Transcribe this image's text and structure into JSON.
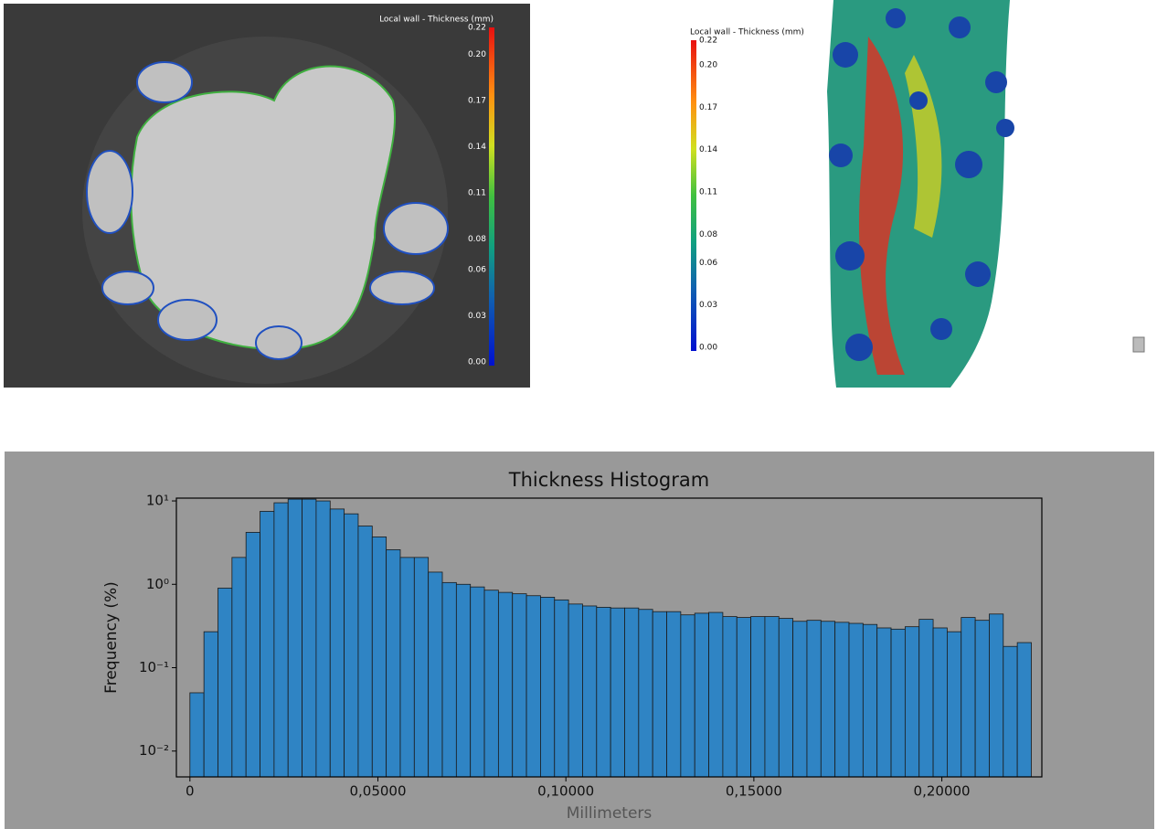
{
  "chart_data": [
    {
      "type": "colorbar",
      "title": "Local wall - Thickness (mm)",
      "ylim": [
        0,
        0.22
      ],
      "yticks": [
        {
          "value": 0,
          "label": "0.00"
        },
        0.03,
        0.06,
        0.08,
        0.11,
        0.14,
        0.17,
        {
          "value": 0.2,
          "label": "0.20"
        },
        0.22
      ]
    },
    {
      "type": "colorbar",
      "title": "Local wall - Thickness (mm)",
      "ylim": [
        0,
        0.22
      ],
      "yticks": [
        {
          "value": 0,
          "label": "0.00"
        },
        0.03,
        0.06,
        0.08,
        0.11,
        0.14,
        0.17,
        {
          "value": 0.2,
          "label": "0.20"
        },
        0.22
      ]
    },
    {
      "type": "histogram",
      "title": "Thickness Histogram",
      "xlabel": "Millimeters",
      "ylabel": "Frequency (%)",
      "color": "#2f84c4",
      "log_y": true,
      "bins": [
        0,
        0.00373,
        0.00746,
        0.01119,
        0.01492,
        0.01865,
        0.02238,
        0.02611,
        0.02984,
        0.03357,
        0.0373,
        0.04103,
        0.04476,
        0.04849,
        0.05222,
        0.05595,
        0.05968,
        0.06341,
        0.06714,
        0.07087,
        0.0746,
        0.07833,
        0.08206,
        0.08579,
        0.08952,
        0.09325,
        0.09698,
        0.10071,
        0.10444,
        0.10817,
        0.1119,
        0.11563,
        0.11936,
        0.12309,
        0.12682,
        0.13055,
        0.13428,
        0.13801,
        0.14174,
        0.14547,
        0.1492,
        0.15293,
        0.15666,
        0.16039,
        0.16412,
        0.16785,
        0.17158,
        0.17531,
        0.17904,
        0.18277,
        0.1865,
        0.19023,
        0.19396,
        0.19769,
        0.20142,
        0.20515,
        0.20888,
        0.21261,
        0.21634,
        0.22007,
        0.2238
      ],
      "values": [
        0.05,
        0.27,
        0.9,
        2.1,
        4.2,
        7.5,
        9.5,
        10.5,
        10.5,
        10,
        8,
        7,
        5,
        3.7,
        2.6,
        2.1,
        2.1,
        1.4,
        1.05,
        1.0,
        0.93,
        0.85,
        0.8,
        0.77,
        0.73,
        0.7,
        0.65,
        0.58,
        0.55,
        0.53,
        0.52,
        0.52,
        0.5,
        0.47,
        0.47,
        0.43,
        0.45,
        0.46,
        0.41,
        0.4,
        0.41,
        0.41,
        0.39,
        0.36,
        0.37,
        0.36,
        0.35,
        0.34,
        0.33,
        0.3,
        0.29,
        0.31,
        0.38,
        0.3,
        0.27,
        0.4,
        0.37,
        0.44,
        0.18,
        0.2
      ],
      "xlim": [
        -0.0036,
        0.2266
      ],
      "ylim": [
        0.0049,
        10.8
      ],
      "xticks": [
        0,
        {
          "value": 0.05,
          "label": "0,05000"
        },
        {
          "value": 0.1,
          "label": "0,10000"
        },
        {
          "value": 0.15,
          "label": "0,15000"
        },
        {
          "value": 0.2,
          "label": "0,20000"
        }
      ],
      "yticks": [
        {
          "value": 0.01,
          "label": "10⁻²"
        },
        {
          "value": 0.1,
          "label": "10⁻¹"
        },
        {
          "value": 1,
          "label": "10⁰"
        },
        {
          "value": 10,
          "label": "10¹"
        }
      ]
    }
  ]
}
